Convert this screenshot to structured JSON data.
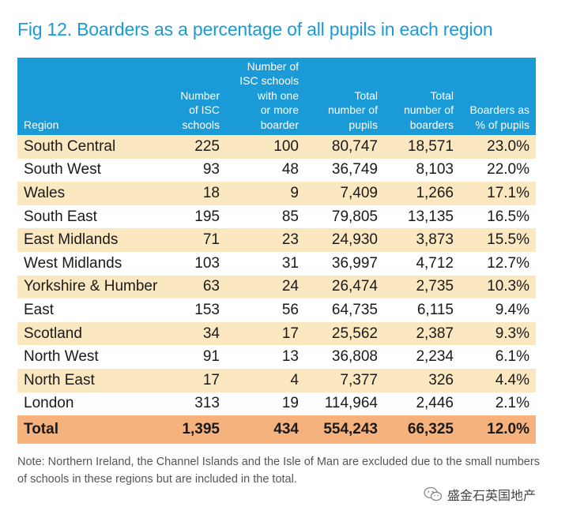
{
  "title": "Fig 12. Boarders as a percentage of all pupils in each region",
  "chart_data": {
    "type": "table",
    "title": "Fig 12. Boarders as a percentage of all pupils in each region",
    "columns": [
      "Region",
      "Number of ISC schools",
      "Number of ISC schools with one or more boarder",
      "Total number of pupils",
      "Total number of boarders",
      "Boarders as % of pupils"
    ],
    "column_lines": [
      [
        "Region"
      ],
      [
        "Number",
        "of ISC",
        "schools"
      ],
      [
        "Number of",
        "ISC schools",
        "with one",
        "or more",
        "boarder"
      ],
      [
        "Total",
        "number of",
        "pupils"
      ],
      [
        "Total",
        "number of",
        "boarders"
      ],
      [
        "Boarders as",
        "% of pupils"
      ]
    ],
    "rows": [
      [
        "South Central",
        "225",
        "100",
        "80,747",
        "18,571",
        "23.0%"
      ],
      [
        "South West",
        "93",
        "48",
        "36,749",
        "8,103",
        "22.0%"
      ],
      [
        "Wales",
        "18",
        "9",
        "7,409",
        "1,266",
        "17.1%"
      ],
      [
        "South East",
        "195",
        "85",
        "79,805",
        "13,135",
        "16.5%"
      ],
      [
        "East Midlands",
        "71",
        "23",
        "24,930",
        "3,873",
        "15.5%"
      ],
      [
        "West Midlands",
        "103",
        "31",
        "36,997",
        "4,712",
        "12.7%"
      ],
      [
        "Yorkshire & Humber",
        "63",
        "24",
        "26,474",
        "2,735",
        "10.3%"
      ],
      [
        "East",
        "153",
        "56",
        "64,735",
        "6,115",
        "9.4%"
      ],
      [
        "Scotland",
        "34",
        "17",
        "25,562",
        "2,387",
        "9.3%"
      ],
      [
        "North West",
        "91",
        "13",
        "36,808",
        "2,234",
        "6.1%"
      ],
      [
        "North East",
        "17",
        "4",
        "7,377",
        "326",
        "4.4%"
      ],
      [
        "London",
        "313",
        "19",
        "114,964",
        "2,446",
        "2.1%"
      ]
    ],
    "total": [
      "Total",
      "1,395",
      "434",
      "554,243",
      "66,325",
      "12.0%"
    ]
  },
  "note": "Note: Northern Ireland, the Channel Islands and the Isle of Man are excluded due to the small numbers of schools in these regions but are included in the total.",
  "watermark": {
    "text": "盛金石英国地产",
    "icon": "wechat-icon"
  },
  "colors": {
    "accent": "#1a9ad6",
    "row_band": "#fbe8c1",
    "total_row": "#f6b27d"
  }
}
